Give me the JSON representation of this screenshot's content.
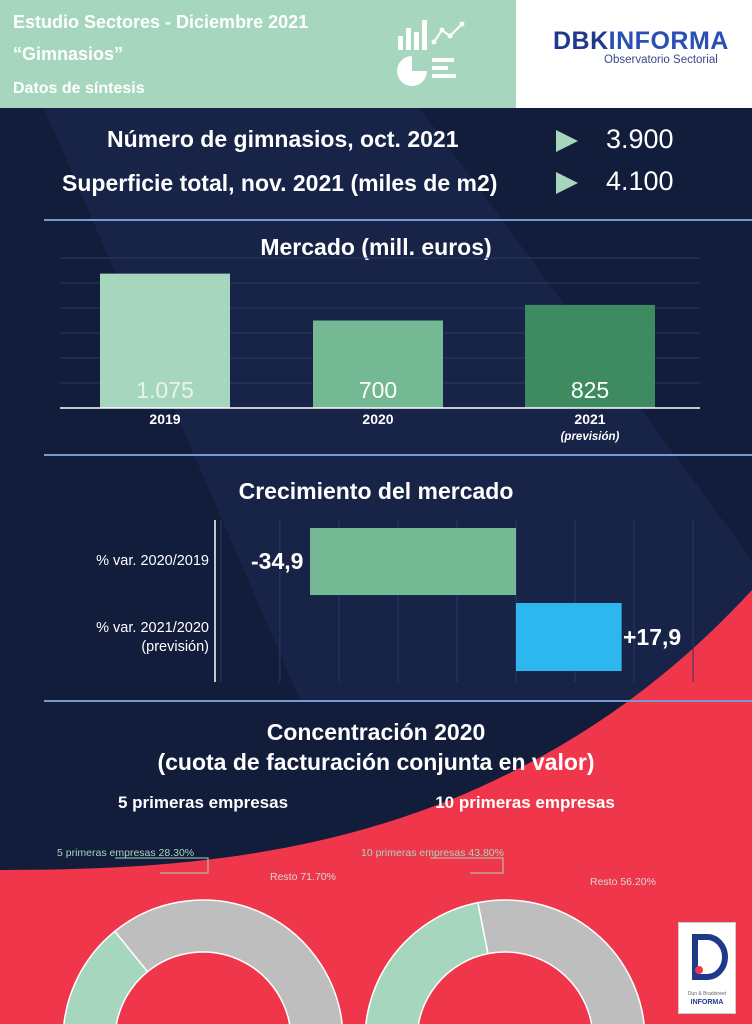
{
  "header": {
    "title": "Estudio Sectores - Diciembre 2021",
    "subtitle": "“Gimnasios”",
    "section": "Datos de síntesis",
    "logo_main_a": "DBK",
    "logo_main_b": "INFORMA",
    "logo_sub": "Observatorio Sectorial",
    "corner_logo_line1": "Dun & Bradstreet",
    "corner_logo_line2": "INFORMA"
  },
  "stats": [
    {
      "label": "Número de gimnasios, oct. 2021",
      "value": "3.900"
    },
    {
      "label": "Superficie total, nov. 2021 (miles de m2)",
      "value": "4.100"
    }
  ],
  "colors": {
    "background": "#121c3b",
    "header_band": "#a6d7be",
    "bar_2019": "#a6d7be",
    "bar_2020": "#74b894",
    "bar_2021": "#3e8b62",
    "growth_negative": "#74b894",
    "growth_positive": "#2eb6ee",
    "accent_red": "#f0364a",
    "gauge_top": "#a6d7be",
    "gauge_rest": "#bebebe",
    "divider": "#7d98cf"
  },
  "chart_data": [
    {
      "type": "bar",
      "title": "Mercado (mill. euros)",
      "categories": [
        "2019",
        "2020",
        "2021"
      ],
      "category_notes": [
        "",
        "",
        "(previsión)"
      ],
      "values": [
        1075,
        700,
        825
      ],
      "value_labels": [
        "1.075",
        "700",
        "825"
      ],
      "ylim": [
        0,
        1200
      ],
      "grid": true
    },
    {
      "type": "bar",
      "orientation": "horizontal",
      "title": "Crecimiento del mercado",
      "categories": [
        "% var. 2020/2019",
        "% var. 2021/2020"
      ],
      "category_notes": [
        "",
        "(previsión)"
      ],
      "values": [
        -34.9,
        17.9
      ],
      "value_labels": [
        "-34,9",
        "+17,9"
      ],
      "xlim": [
        -60,
        40
      ],
      "grid": true
    },
    {
      "type": "pie",
      "title": "5 primeras empresas",
      "style": "half-donut",
      "slices": [
        {
          "label": "5 primeras empresas 28.30%",
          "value": 28.3
        },
        {
          "label": "Resto 71.70%",
          "value": 71.7
        }
      ]
    },
    {
      "type": "pie",
      "title": "10 primeras empresas",
      "style": "half-donut",
      "slices": [
        {
          "label": "10 primeras empresas 43.80%",
          "value": 43.8
        },
        {
          "label": "Resto 56.20%",
          "value": 56.2
        }
      ]
    }
  ],
  "concentration": {
    "title_line1": "Concentración 2020",
    "title_line2": "(cuota de facturación conjunta en valor)"
  }
}
